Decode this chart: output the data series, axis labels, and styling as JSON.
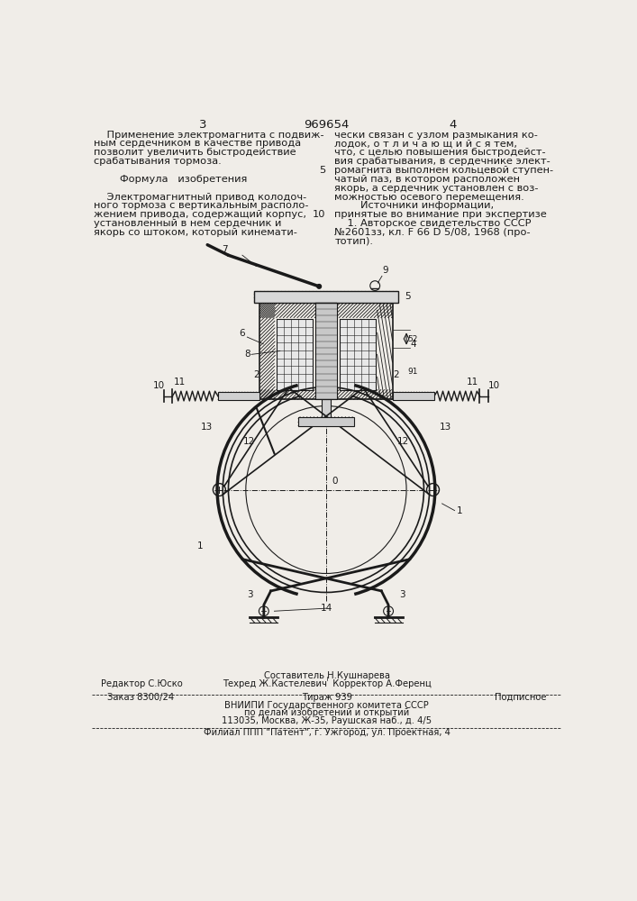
{
  "page_number_left": "3",
  "patent_number": "969654",
  "page_number_right": "4",
  "background_color": "#f0ede8",
  "text_color": "#1a1a1a",
  "col_left_text": [
    "    Применение электромагнита с подвиж-",
    "ным сердечником в качестве привода",
    "позволит увеличить быстродействие",
    "срабатывания тормоза.",
    "",
    "        Формула   изобретения",
    "",
    "    Электромагнитный привод колодоч-",
    "ного тормоза с вертикальным располо-",
    "жением привода, содержащий корпус,",
    "установленный в нем сердечник и",
    "якорь со штоком, который кинемати-"
  ],
  "col_right_text": [
    "чески связан с узлом размыкания ко-",
    "лодок, о т л и ч а ю щ и й с я тем,",
    "что, с целью повышения быстродейст-",
    "вия срабатывания, в сердечнике элект-",
    "ромагнита выполнен кольцевой ступен-",
    "чатый паз, в котором расположен",
    "якорь, а сердечник установлен с воз-",
    "можностью осевого перемещения.",
    "        Источники информации,",
    "принятые во внимание при экспертизе",
    "    1. Авторское свидетельство СССР",
    "№2601зз, кл. F 66 D 5/08, 1968 (про-",
    "тотип)."
  ],
  "footer_редактор": "Редактор С.Юско",
  "footer_составитель": "Составитель Н.Кушнарева",
  "footer_техред": "Техред Ж.Кастелевич  Корректор А.Ференц",
  "footer_заказ": "Заказ 8300/24",
  "footer_тираж": "Тираж 939",
  "footer_подписное": "Подписное",
  "footer_вниипи1": "ВНИИПИ Государственного комитета СССР",
  "footer_вниипи2": "по делам изобретений и открытий",
  "footer_адрес": "113035, Москва, Ж-35, Раушская наб., д. 4/5",
  "footer_филиал": "Филиал ППП \"Патент\", г. Ужгород, ул. Проектная, 4",
  "font_size_body": 8.2,
  "font_size_header": 9.5,
  "font_size_footer": 7.2,
  "font_size_diagram_label": 7.5
}
